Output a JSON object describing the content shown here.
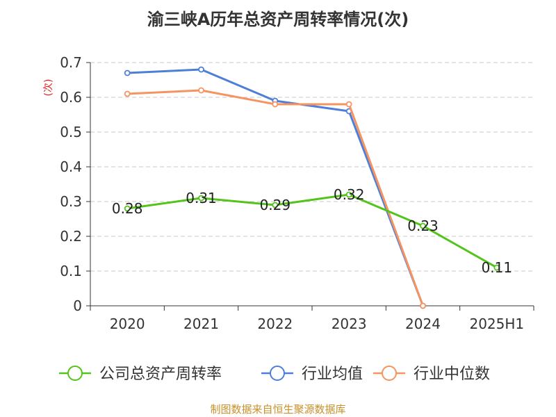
{
  "title": "渝三峡A历年总资产周转率情况(次)",
  "source": "制图数据来自恒生聚源数据库",
  "chart_data": {
    "type": "line",
    "title": "渝三峡A历年总资产周转率情况(次)",
    "ylabel": "(次)",
    "xlabel": "",
    "categories": [
      "2020",
      "2021",
      "2022",
      "2023",
      "2024",
      "2025H1"
    ],
    "ylim": [
      0,
      0.7
    ],
    "yticks": [
      "0",
      "0.1",
      "0.2",
      "0.3",
      "0.4",
      "0.5",
      "0.6",
      "0.7"
    ],
    "grid": true,
    "legend_position": "bottom",
    "series": [
      {
        "name": "公司总资产周转率",
        "color": "#52c41a",
        "values": [
          0.28,
          0.31,
          0.29,
          0.32,
          0.23,
          0.11
        ],
        "labels": [
          "0.28",
          "0.31",
          "0.29",
          "0.32",
          "0.23",
          "0.11"
        ]
      },
      {
        "name": "行业均值",
        "color": "#4e7fd8",
        "values": [
          0.67,
          0.68,
          0.59,
          0.56,
          0,
          null
        ]
      },
      {
        "name": "行业中位数",
        "color": "#f59460",
        "values": [
          0.61,
          0.62,
          0.58,
          0.58,
          0,
          null
        ]
      }
    ]
  }
}
